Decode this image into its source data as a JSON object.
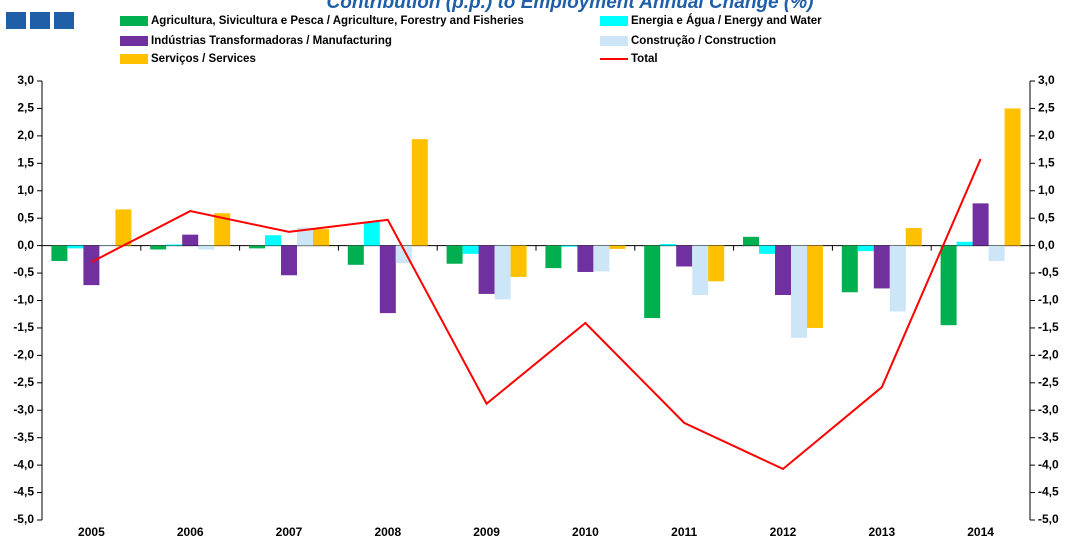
{
  "chart_data": {
    "type": "bar",
    "title": "Contribution (p.p.) to Employment Annual Change (%)",
    "categories": [
      "2005",
      "2006",
      "2007",
      "2008",
      "2009",
      "2010",
      "2011",
      "2012",
      "2013",
      "2014"
    ],
    "series": [
      {
        "name": "Agricultura, Sivicultura e Pesca / Agriculture, Forestry and Fisheries",
        "color": "#00b050",
        "values": [
          -0.28,
          -0.07,
          -0.05,
          -0.35,
          -0.33,
          -0.41,
          -1.32,
          0.16,
          -0.85,
          -1.45
        ]
      },
      {
        "name": "Energia e Água / Energy and Water",
        "color": "#00ffff",
        "values": [
          -0.05,
          0.02,
          0.19,
          0.43,
          -0.15,
          -0.02,
          0.03,
          -0.15,
          -0.1,
          0.07
        ]
      },
      {
        "name": "Indústrias Transformadoras / Manufacturing",
        "color": "#7030a0",
        "values": [
          -0.72,
          0.2,
          -0.54,
          -1.23,
          -0.88,
          -0.48,
          -0.38,
          -0.9,
          -0.78,
          0.77
        ]
      },
      {
        "name": "Construção / Construction",
        "color": "#cce6f8",
        "values": [
          -0.02,
          -0.07,
          0.33,
          -0.32,
          -0.98,
          -0.47,
          -0.9,
          -1.68,
          -1.2,
          -0.28
        ]
      },
      {
        "name": "Serviços / Services",
        "color": "#ffc000",
        "values": [
          0.66,
          0.59,
          0.3,
          1.94,
          -0.57,
          -0.06,
          -0.65,
          -1.5,
          0.32,
          2.5
        ]
      },
      {
        "name": "Total",
        "color": "#ff0000",
        "type": "line",
        "values": [
          -0.3,
          0.63,
          0.25,
          0.47,
          -2.88,
          -1.41,
          -3.23,
          -4.07,
          -2.58,
          1.58
        ]
      }
    ],
    "ylim": [
      -5,
      3
    ],
    "yticks": [
      {
        "value": 3,
        "label": "3,0"
      },
      {
        "value": 2.5,
        "label": "2,5"
      },
      {
        "value": 2,
        "label": "2,0"
      },
      {
        "value": 1.5,
        "label": "1,5"
      },
      {
        "value": 1,
        "label": "1,0"
      },
      {
        "value": 0.5,
        "label": "0,5"
      },
      {
        "value": 0,
        "label": "0,0"
      },
      {
        "value": -0.5,
        "label": "-0,5"
      },
      {
        "value": -1,
        "label": "-1,0"
      },
      {
        "value": -1.5,
        "label": "-1,5"
      },
      {
        "value": -2,
        "label": "-2,0"
      },
      {
        "value": -2.5,
        "label": "-2,5"
      },
      {
        "value": -3,
        "label": "-3,0"
      },
      {
        "value": -3.5,
        "label": "-3,5"
      },
      {
        "value": -4,
        "label": "-4,0"
      },
      {
        "value": -4.5,
        "label": "-4,5"
      },
      {
        "value": -5,
        "label": "-5,0"
      }
    ],
    "y2lim": [
      -5,
      3
    ],
    "y2ticks": [
      {
        "value": 3,
        "label": "3,0"
      },
      {
        "value": 2.5,
        "label": "2,5"
      },
      {
        "value": 2,
        "label": "2,0"
      },
      {
        "value": 1.5,
        "label": "1,5"
      },
      {
        "value": 1,
        "label": "1,0"
      },
      {
        "value": 0.5,
        "label": "0,5"
      },
      {
        "value": 0,
        "label": "0,0"
      },
      {
        "value": -0.5,
        "label": "-0,5"
      },
      {
        "value": -1,
        "label": "-1,0"
      },
      {
        "value": -1.5,
        "label": "-1,5"
      },
      {
        "value": -2,
        "label": "-2,0"
      },
      {
        "value": -2.5,
        "label": "-2,5"
      },
      {
        "value": -3,
        "label": "-3,0"
      },
      {
        "value": -3.5,
        "label": "-3,5"
      },
      {
        "value": -4,
        "label": "-4,0"
      },
      {
        "value": -4.5,
        "label": "-4,5"
      },
      {
        "value": -5,
        "label": "-5,0"
      }
    ],
    "grid": false
  }
}
